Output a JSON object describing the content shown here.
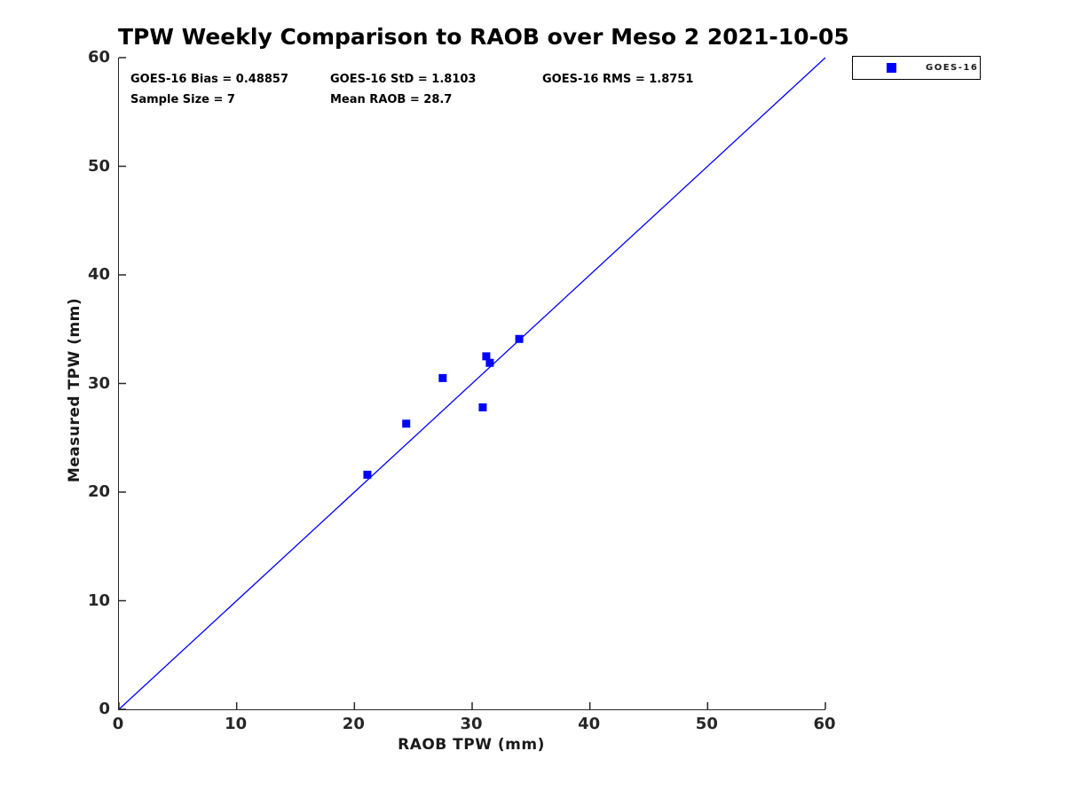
{
  "stats": {
    "bias": "GOES-16 Bias = 0.48857",
    "std": "GOES-16 StD = 1.8103",
    "rms": "GOES-16 RMS = 1.8751",
    "sample_size": "Sample Size = 7",
    "mean_raob": "Mean RAOB = 28.7"
  },
  "legend": {
    "entries": [
      {
        "label": "GOES-16",
        "marker": "square-icon",
        "color": "#0000ff"
      }
    ]
  },
  "chart_data": {
    "type": "scatter",
    "title": "TPW Weekly Comparison to RAOB over Meso 2 2021-10-05",
    "xlabel": "RAOB TPW (mm)",
    "ylabel": "Measured TPW (mm)",
    "xlim": [
      0,
      60
    ],
    "ylim": [
      0,
      60
    ],
    "xticks": [
      0,
      10,
      20,
      30,
      40,
      50,
      60
    ],
    "yticks": [
      0,
      10,
      20,
      30,
      40,
      50,
      60
    ],
    "grid": false,
    "legend_position": "outside-top-right",
    "series": [
      {
        "name": "GOES-16",
        "marker": "square",
        "color": "#0000ff",
        "points": [
          [
            21.1,
            21.6
          ],
          [
            24.4,
            26.3
          ],
          [
            27.5,
            30.5
          ],
          [
            30.9,
            27.8
          ],
          [
            31.2,
            32.5
          ],
          [
            31.5,
            31.9
          ],
          [
            34.0,
            34.1
          ]
        ]
      }
    ],
    "reference_line": {
      "from": [
        0,
        0
      ],
      "to": [
        60,
        60
      ],
      "color": "#0000ff",
      "width": 1.3
    },
    "annotations": [
      "GOES-16 Bias = 0.48857",
      "GOES-16 StD = 1.8103",
      "GOES-16 RMS = 1.8751",
      "Sample Size = 7",
      "Mean RAOB = 28.7"
    ]
  }
}
